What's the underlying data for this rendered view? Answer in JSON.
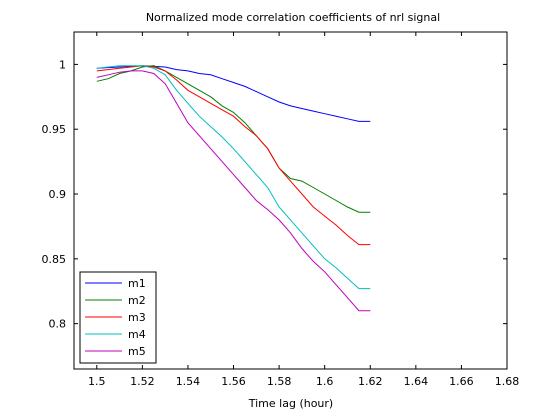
{
  "chart_data": {
    "type": "line",
    "title": "Normalized mode correlation coefficients of nrl signal",
    "xlabel": "Time lag (hour)",
    "ylabel": "",
    "xlim": [
      1.49,
      1.68
    ],
    "ylim": [
      0.765,
      1.025
    ],
    "xticks": [
      1.5,
      1.52,
      1.54,
      1.56,
      1.58,
      1.6,
      1.62,
      1.64,
      1.66,
      1.68
    ],
    "xtick_labels": [
      "1.5",
      "1.52",
      "1.54",
      "1.56",
      "1.58",
      "1.6",
      "1.62",
      "1.64",
      "1.66",
      "1.68"
    ],
    "yticks": [
      0.8,
      0.85,
      0.9,
      0.95,
      1.0
    ],
    "ytick_labels": [
      "0.8",
      "0.85",
      "0.9",
      "0.95",
      "1"
    ],
    "grid": false,
    "legend_position": "bottom-left",
    "series": [
      {
        "name": "m1",
        "color": "#0000ff",
        "x": [
          1.5,
          1.51,
          1.52,
          1.53,
          1.535,
          1.54,
          1.545,
          1.55,
          1.555,
          1.56,
          1.565,
          1.57,
          1.575,
          1.58,
          1.585,
          1.59,
          1.595,
          1.6,
          1.605,
          1.61,
          1.615,
          1.62
        ],
        "y": [
          0.997,
          0.998,
          0.999,
          0.998,
          0.996,
          0.995,
          0.993,
          0.992,
          0.989,
          0.986,
          0.983,
          0.979,
          0.975,
          0.971,
          0.968,
          0.966,
          0.964,
          0.962,
          0.96,
          0.958,
          0.956,
          0.956
        ]
      },
      {
        "name": "m2",
        "color": "#008000",
        "x": [
          1.5,
          1.505,
          1.51,
          1.515,
          1.52,
          1.525,
          1.53,
          1.535,
          1.54,
          1.545,
          1.55,
          1.555,
          1.56,
          1.565,
          1.57,
          1.575,
          1.58,
          1.585,
          1.59,
          1.595,
          1.6,
          1.605,
          1.61,
          1.615,
          1.62
        ],
        "y": [
          0.987,
          0.989,
          0.993,
          0.995,
          0.998,
          0.999,
          0.995,
          0.99,
          0.985,
          0.98,
          0.975,
          0.968,
          0.963,
          0.955,
          0.945,
          0.935,
          0.92,
          0.912,
          0.91,
          0.905,
          0.9,
          0.895,
          0.89,
          0.886,
          0.886
        ]
      },
      {
        "name": "m3",
        "color": "#ff0000",
        "x": [
          1.5,
          1.505,
          1.51,
          1.515,
          1.52,
          1.525,
          1.53,
          1.535,
          1.54,
          1.545,
          1.55,
          1.555,
          1.56,
          1.565,
          1.57,
          1.575,
          1.58,
          1.585,
          1.59,
          1.595,
          1.6,
          1.605,
          1.61,
          1.615,
          1.62
        ],
        "y": [
          0.995,
          0.996,
          0.997,
          0.998,
          0.999,
          0.998,
          0.995,
          0.988,
          0.98,
          0.975,
          0.97,
          0.965,
          0.96,
          0.952,
          0.945,
          0.935,
          0.92,
          0.91,
          0.9,
          0.89,
          0.883,
          0.876,
          0.868,
          0.861,
          0.861
        ]
      },
      {
        "name": "m4",
        "color": "#00bfbf",
        "x": [
          1.5,
          1.505,
          1.51,
          1.515,
          1.52,
          1.525,
          1.53,
          1.535,
          1.54,
          1.545,
          1.55,
          1.555,
          1.56,
          1.565,
          1.57,
          1.575,
          1.58,
          1.585,
          1.59,
          1.595,
          1.6,
          1.605,
          1.61,
          1.615,
          1.62
        ],
        "y": [
          0.997,
          0.998,
          0.999,
          0.999,
          0.999,
          0.997,
          0.992,
          0.98,
          0.97,
          0.96,
          0.952,
          0.944,
          0.935,
          0.925,
          0.915,
          0.905,
          0.89,
          0.88,
          0.87,
          0.86,
          0.85,
          0.843,
          0.835,
          0.827,
          0.827
        ]
      },
      {
        "name": "m5",
        "color": "#bf00bf",
        "x": [
          1.5,
          1.505,
          1.51,
          1.515,
          1.52,
          1.525,
          1.53,
          1.535,
          1.54,
          1.545,
          1.55,
          1.555,
          1.56,
          1.565,
          1.57,
          1.575,
          1.58,
          1.585,
          1.59,
          1.595,
          1.6,
          1.605,
          1.61,
          1.615,
          1.62
        ],
        "y": [
          0.99,
          0.992,
          0.994,
          0.995,
          0.995,
          0.993,
          0.985,
          0.97,
          0.955,
          0.945,
          0.935,
          0.925,
          0.915,
          0.905,
          0.895,
          0.888,
          0.88,
          0.87,
          0.858,
          0.848,
          0.84,
          0.83,
          0.82,
          0.81,
          0.81
        ]
      }
    ]
  }
}
